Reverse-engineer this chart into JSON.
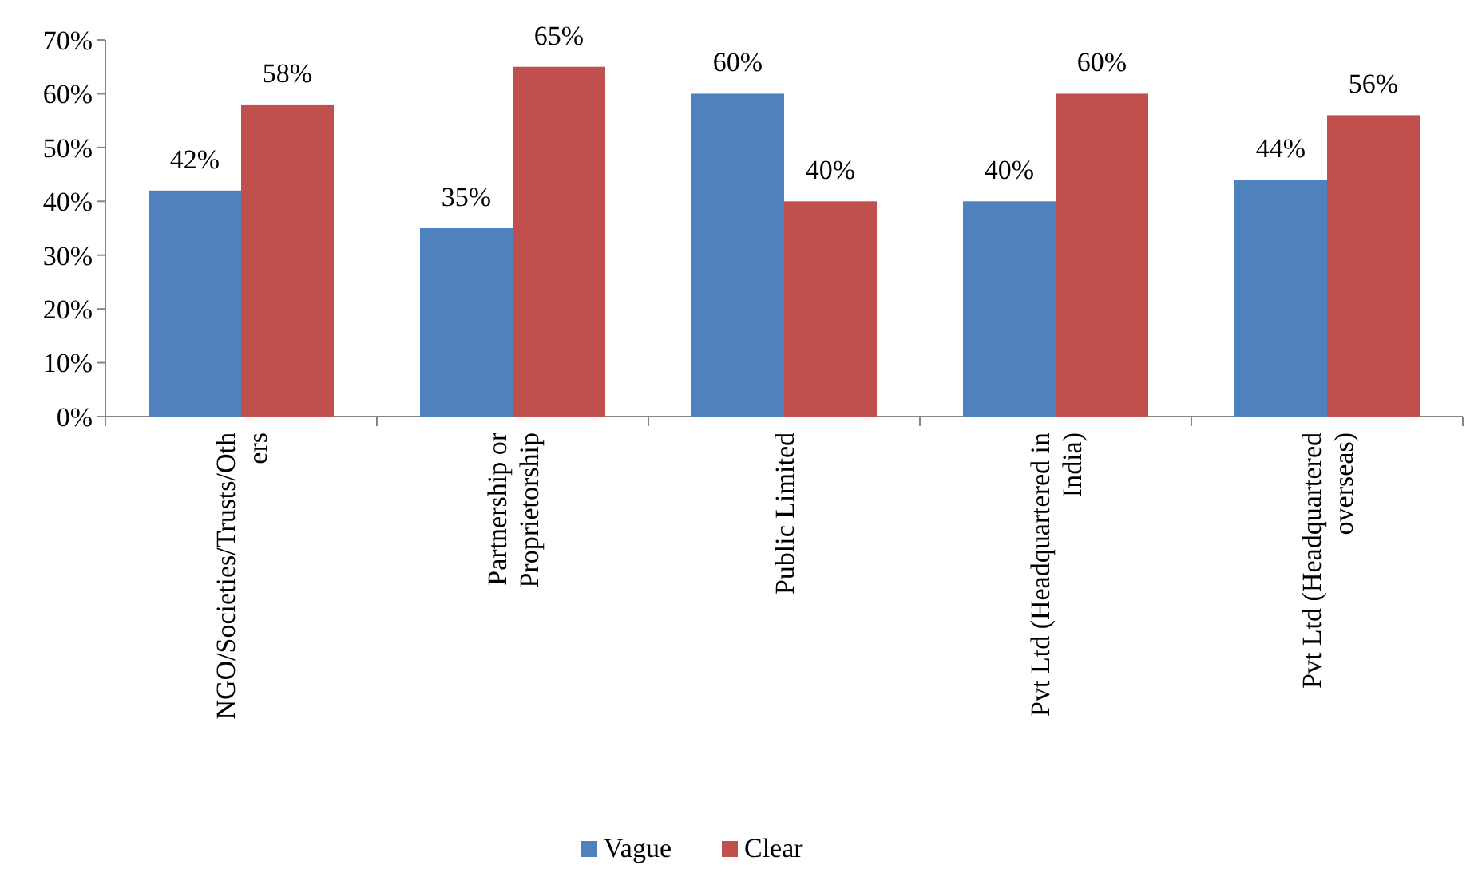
{
  "chart_data": {
    "type": "bar",
    "categories": [
      "NGO/Societies/Trusts/Others",
      "Partnership or Proprietorship",
      "Public Limited",
      "Pvt Ltd (Headquartered in India)",
      "Pvt Ltd (Headquartered overseas)"
    ],
    "series": [
      {
        "name": "Vague",
        "color": "#4f81bd",
        "values": [
          42,
          35,
          60,
          40,
          44
        ],
        "value_labels": [
          "42%",
          "35%",
          "60%",
          "40%",
          "44%"
        ]
      },
      {
        "name": "Clear",
        "color": "#c0504d",
        "values": [
          58,
          65,
          40,
          60,
          56
        ],
        "value_labels": [
          "58%",
          "65%",
          "40%",
          "60%",
          "56%"
        ]
      }
    ],
    "ylim": [
      0,
      70
    ],
    "yticks": [
      {
        "value": 0,
        "label": "0%"
      },
      {
        "value": 10,
        "label": "10%"
      },
      {
        "value": 20,
        "label": "20%"
      },
      {
        "value": 30,
        "label": "30%"
      },
      {
        "value": 40,
        "label": "40%"
      },
      {
        "value": 50,
        "label": "50%"
      },
      {
        "value": 60,
        "label": "60%"
      },
      {
        "value": 70,
        "label": "70%"
      }
    ],
    "legend": "bottom"
  }
}
